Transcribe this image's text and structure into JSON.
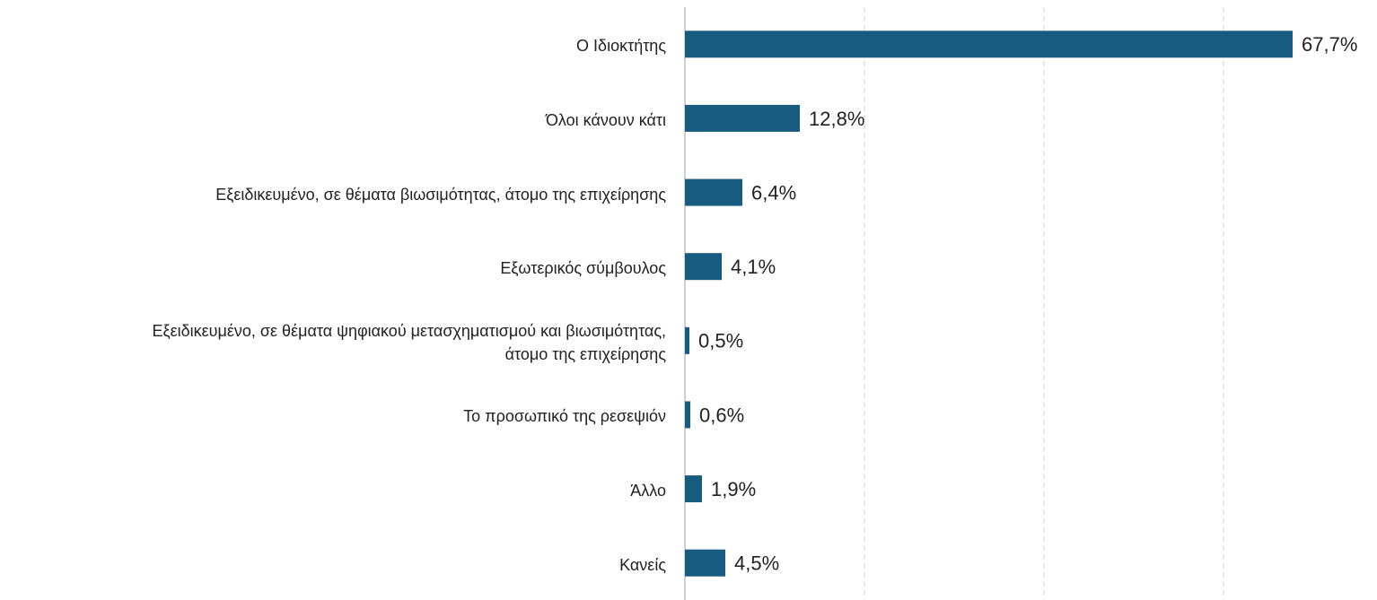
{
  "chart_data": {
    "type": "barh",
    "categories": [
      "Ο Ιδιοκτήτης",
      "Όλοι κάνουν κάτι",
      "Εξειδικευμένο, σε θέματα βιωσιμότητας, άτομο της επιχείρησης",
      "Εξωτερικός σύμβουλος",
      "Εξειδικευμένο, σε θέματα ψηφιακού μετασχηματισμού και βιωσιμότητας,\nάτομο της επιχείρησης",
      "Το προσωπικό της ρεσεψιόν",
      "Άλλο",
      "Κανείς"
    ],
    "values": [
      67.7,
      12.8,
      6.4,
      4.1,
      0.5,
      0.6,
      1.9,
      4.5
    ],
    "value_labels": [
      "67,7%",
      "12,8%",
      "6,4%",
      "4,1%",
      "0,5%",
      "0,6%",
      "1,9%",
      "4,5%"
    ],
    "color": "#175c80",
    "xlim": [
      0,
      77
    ],
    "xticks": [
      0,
      20,
      40,
      60
    ],
    "grid": true
  }
}
